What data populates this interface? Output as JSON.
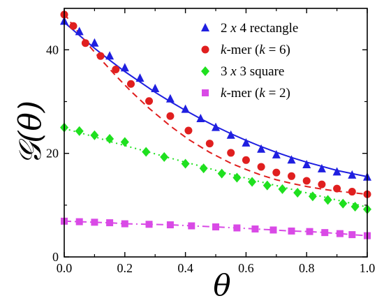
{
  "chart_data": {
    "type": "scatter",
    "title": "",
    "xlabel": "θ",
    "ylabel": "𝒢(θ)",
    "xlim": [
      0,
      1
    ],
    "ylim": [
      0,
      48
    ],
    "x_ticks": [
      "0.0",
      "0.2",
      "0.4",
      "0.6",
      "0.8",
      "1.0"
    ],
    "y_ticks": [
      "0",
      "20",
      "40"
    ],
    "grid": false,
    "legend_position": "top-right",
    "series": [
      {
        "name": "2 x 4 rectangle",
        "marker": "triangle",
        "color": "#1f1fe0",
        "line_style": "solid",
        "x": [
          0.0,
          0.05,
          0.1,
          0.15,
          0.2,
          0.25,
          0.3,
          0.35,
          0.4,
          0.45,
          0.5,
          0.55,
          0.6,
          0.65,
          0.7,
          0.75,
          0.8,
          0.85,
          0.9,
          0.95,
          1.0
        ],
        "y": [
          45.5,
          43.5,
          41.3,
          38.8,
          36.5,
          34.5,
          32.5,
          30.5,
          28.5,
          26.7,
          25.0,
          23.5,
          22.0,
          20.8,
          19.7,
          18.7,
          17.8,
          17.0,
          16.4,
          15.8,
          15.4
        ],
        "fit": [
          45.3,
          42.8,
          40.3,
          38.0,
          35.8,
          33.8,
          31.8,
          30.0,
          28.3,
          26.7,
          25.2,
          23.8,
          22.5,
          21.3,
          20.2,
          19.2,
          18.3,
          17.5,
          16.7,
          16.1,
          15.5
        ]
      },
      {
        "name": "k-mer (k = 6)",
        "marker": "circle",
        "color": "#e01f1f",
        "line_style": "dash",
        "x": [
          0.0,
          0.03,
          0.07,
          0.12,
          0.17,
          0.22,
          0.28,
          0.35,
          0.41,
          0.48,
          0.55,
          0.6,
          0.65,
          0.7,
          0.75,
          0.8,
          0.85,
          0.9,
          0.95,
          1.0
        ],
        "y": [
          46.8,
          44.6,
          41.3,
          38.8,
          36.2,
          33.4,
          30.1,
          27.2,
          24.4,
          21.9,
          20.1,
          18.7,
          17.4,
          16.3,
          15.6,
          14.7,
          14.0,
          13.2,
          12.6,
          12.1
        ],
        "fit": [
          47.0,
          44.6,
          41.6,
          38.2,
          35.0,
          32.0,
          28.7,
          25.3,
          22.7,
          20.2,
          18.1,
          16.9,
          15.8,
          14.9,
          14.2,
          13.6,
          13.1,
          12.7,
          12.4,
          12.1
        ]
      },
      {
        "name": "3 x 3 square",
        "marker": "diamond",
        "color": "#1fe01f",
        "line_style": "dot",
        "x": [
          0.0,
          0.05,
          0.1,
          0.15,
          0.2,
          0.27,
          0.33,
          0.4,
          0.46,
          0.52,
          0.57,
          0.62,
          0.67,
          0.72,
          0.77,
          0.82,
          0.87,
          0.92,
          0.96,
          1.0
        ],
        "y": [
          25.0,
          24.3,
          23.5,
          22.8,
          22.2,
          20.3,
          19.3,
          18.0,
          17.1,
          16.1,
          15.3,
          14.5,
          13.8,
          13.1,
          12.4,
          11.7,
          11.0,
          10.3,
          9.7,
          9.2
        ],
        "fit": [
          24.8,
          24.0,
          23.2,
          22.3,
          21.5,
          20.4,
          19.4,
          18.3,
          17.4,
          16.4,
          15.7,
          14.9,
          14.2,
          13.5,
          12.8,
          12.1,
          11.4,
          10.7,
          10.2,
          9.6
        ]
      },
      {
        "name": "k-mer (k = 2)",
        "marker": "square",
        "color": "#d94ae6",
        "line_style": "dashdot",
        "x": [
          0.0,
          0.05,
          0.1,
          0.15,
          0.2,
          0.28,
          0.35,
          0.42,
          0.5,
          0.57,
          0.63,
          0.69,
          0.75,
          0.81,
          0.86,
          0.91,
          0.95,
          1.0
        ],
        "y": [
          6.9,
          6.8,
          6.7,
          6.6,
          6.4,
          6.3,
          6.2,
          6.0,
          5.8,
          5.6,
          5.4,
          5.2,
          5.0,
          4.9,
          4.7,
          4.5,
          4.3,
          4.1
        ],
        "fit": [
          6.9,
          6.8,
          6.7,
          6.6,
          6.4,
          6.3,
          6.2,
          6.0,
          5.8,
          5.6,
          5.4,
          5.2,
          5.0,
          4.9,
          4.7,
          4.5,
          4.3,
          4.1
        ]
      }
    ]
  },
  "legend": [
    {
      "pre": "2 ",
      "mid": "x",
      "post": " 4 rectangle"
    },
    {
      "pre": "",
      "mid": "k",
      "post": "-mer (",
      "mid2": "k",
      "post2": " = 6)"
    },
    {
      "pre": "3 ",
      "mid": "x",
      "post": " 3 square"
    },
    {
      "pre": "",
      "mid": "k",
      "post": "-mer (",
      "mid2": "k",
      "post2": " = 2)"
    }
  ]
}
